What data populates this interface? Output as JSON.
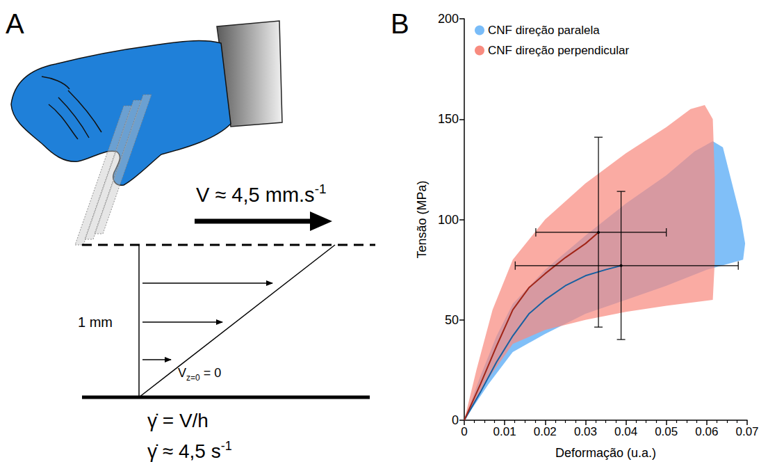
{
  "diagram": {
    "panel_label": "A",
    "velocity": {
      "text": "V ≈ 4,5 mm.s",
      "superscript": "-1"
    },
    "height": "1 mm",
    "boundary": {
      "text": "V",
      "subscript": "z=0",
      "rest": " = 0"
    },
    "shear_rate_formula": "γ̇ = V/h",
    "shear_rate_value": {
      "text": "γ̇ ≈ 4,5 s",
      "superscript": "-1"
    }
  },
  "chart_data": {
    "type": "line",
    "panel_label": "B",
    "xlabel": "Deformação (u.a.)",
    "ylabel": "Tensão (MPa)",
    "xlim": [
      0,
      0.07
    ],
    "xticks": [
      0,
      0.01,
      0.02,
      0.03,
      0.04,
      0.05,
      0.06,
      0.07
    ],
    "ylim": [
      0,
      200
    ],
    "yticks": [
      0,
      50,
      100,
      150,
      200
    ],
    "grid": false,
    "legend": "top-left",
    "series": [
      {
        "name": "CNF direção paralela",
        "color": "#79bcf8",
        "x": [
          0,
          0.004,
          0.008,
          0.012,
          0.016,
          0.02,
          0.025,
          0.03,
          0.035,
          0.0388
        ],
        "values": [
          0,
          14,
          29,
          42,
          53,
          60,
          67,
          72,
          75,
          77
        ],
        "band": [
          [
            0,
            0
          ],
          [
            0.004,
            22
          ],
          [
            0.008,
            42
          ],
          [
            0.012,
            58
          ],
          [
            0.02,
            75
          ],
          [
            0.03,
            92
          ],
          [
            0.04,
            108
          ],
          [
            0.05,
            122
          ],
          [
            0.057,
            134
          ],
          [
            0.0615,
            139
          ],
          [
            0.064,
            136
          ],
          [
            0.066,
            120
          ],
          [
            0.0685,
            100
          ],
          [
            0.0695,
            88
          ],
          [
            0.069,
            80
          ],
          [
            0.06,
            75
          ],
          [
            0.05,
            67
          ],
          [
            0.04,
            60
          ],
          [
            0.03,
            53
          ],
          [
            0.02,
            43
          ],
          [
            0.012,
            34
          ],
          [
            0.006,
            18
          ],
          [
            0,
            0
          ]
        ],
        "end_error": {
          "x": [
            0.0126,
            0.0678
          ],
          "y": [
            40.2,
            114
          ]
        }
      },
      {
        "name": "CNF direção perpendicular",
        "color": "#f88b7f",
        "x": [
          0,
          0.004,
          0.008,
          0.012,
          0.016,
          0.02,
          0.025,
          0.03,
          0.0332
        ],
        "values": [
          0,
          18,
          37,
          55,
          66,
          73,
          81,
          88,
          93.6
        ],
        "band": [
          [
            0,
            0
          ],
          [
            0.003,
            25
          ],
          [
            0.007,
            55
          ],
          [
            0.012,
            80
          ],
          [
            0.02,
            100
          ],
          [
            0.03,
            118
          ],
          [
            0.04,
            133
          ],
          [
            0.05,
            146
          ],
          [
            0.056,
            155
          ],
          [
            0.0595,
            157
          ],
          [
            0.0615,
            150
          ],
          [
            0.062,
            120
          ],
          [
            0.062,
            80
          ],
          [
            0.0615,
            60
          ],
          [
            0.05,
            57
          ],
          [
            0.04,
            54
          ],
          [
            0.03,
            50
          ],
          [
            0.02,
            45
          ],
          [
            0.012,
            38
          ],
          [
            0.005,
            18
          ],
          [
            0,
            0
          ]
        ],
        "end_error": {
          "x": [
            0.0177,
            0.05
          ],
          "y": [
            46.4,
            141
          ]
        }
      }
    ]
  }
}
